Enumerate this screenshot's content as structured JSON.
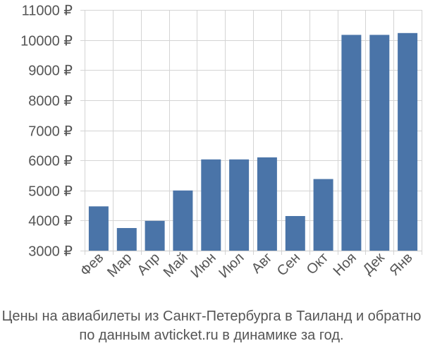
{
  "chart_data": {
    "type": "bar",
    "categories": [
      "Фев",
      "Мар",
      "Апр",
      "Май",
      "Июн",
      "Июл",
      "Авг",
      "Сен",
      "Окт",
      "Ноя",
      "Дек",
      "Янв"
    ],
    "values": [
      4470,
      3750,
      3990,
      5000,
      6030,
      6030,
      6100,
      4150,
      5380,
      10170,
      10170,
      10230
    ],
    "ylim": [
      3000,
      11000
    ],
    "yticks": [
      3000,
      4000,
      5000,
      6000,
      7000,
      8000,
      9000,
      10000,
      11000
    ],
    "ytick_suffix": " ₽",
    "grid": true,
    "bar_color": "#4a74a8"
  },
  "caption": {
    "line1": "Цены на авиабилеты из Санкт-Петербурга в Таиланд и обратно",
    "line2": "по данным avticket.ru в динамике за год."
  }
}
